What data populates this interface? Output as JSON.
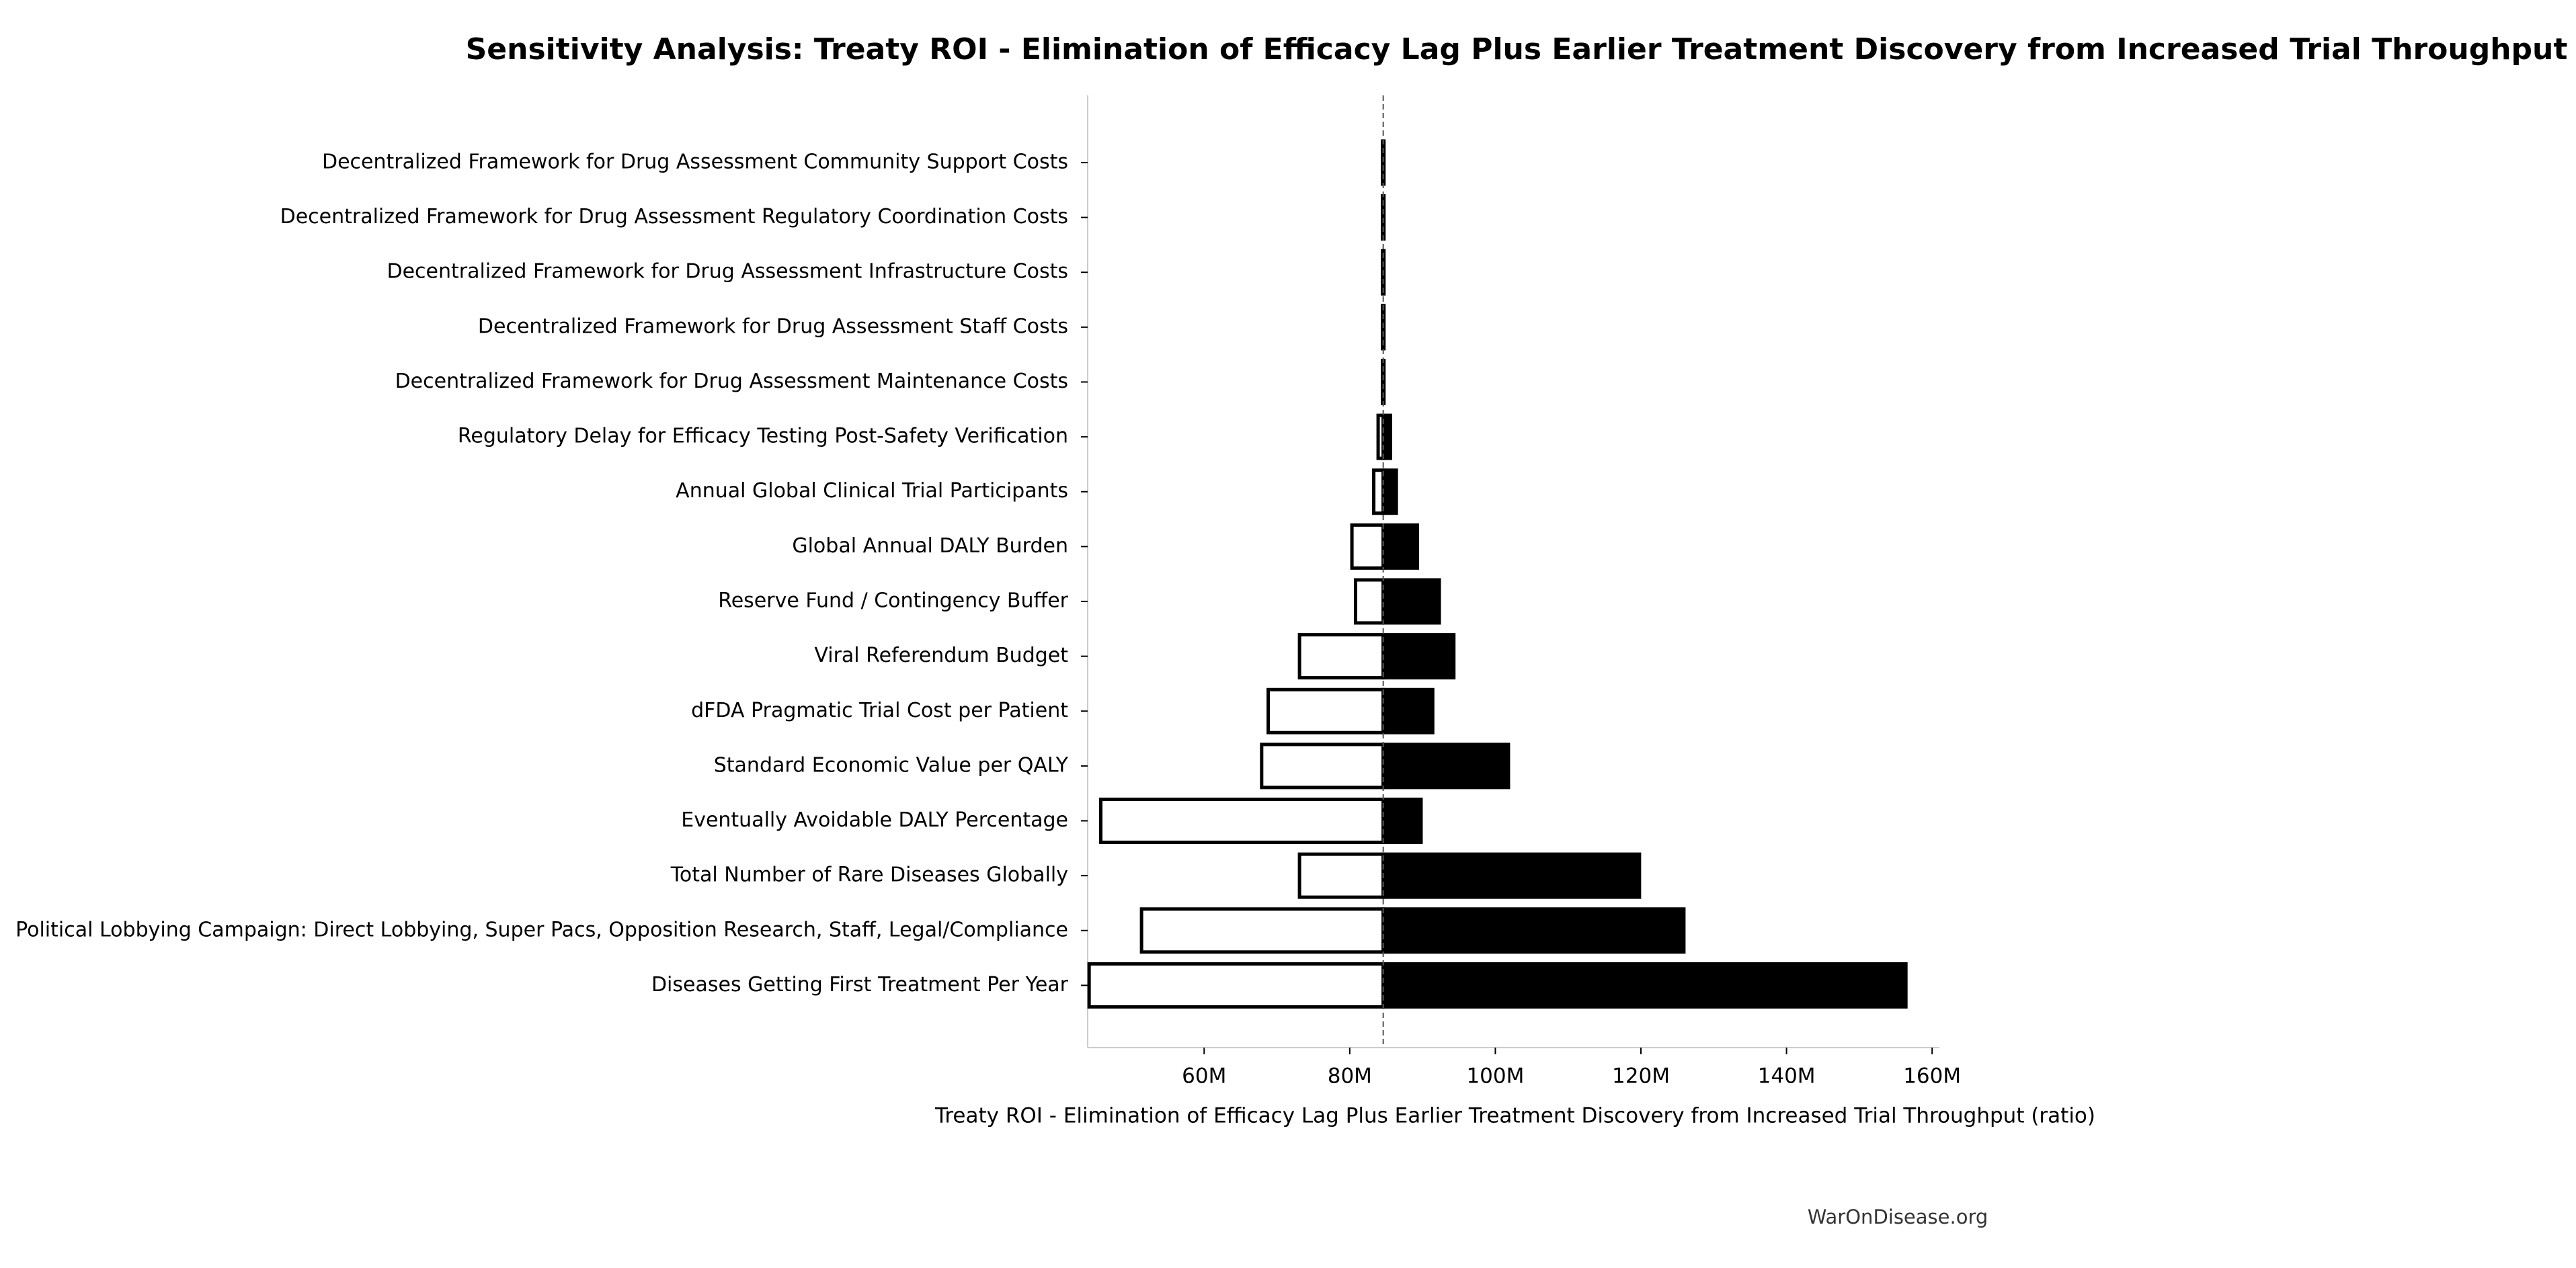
{
  "chart_data": {
    "type": "tornado",
    "title": "Sensitivity Analysis: Treaty ROI - Elimination of Efficacy Lag Plus Earlier Treatment Discovery from Increased Trial Throughput",
    "x_label": "Treaty ROI - Elimination of Efficacy Lag Plus Earlier Treatment Discovery from Increased Trial Throughput (ratio)",
    "source": "WarOnDisease.org",
    "categories": [
      "Decentralized Framework for Drug Assessment Community Support Costs",
      "Decentralized Framework for Drug Assessment Regulatory Coordination Costs",
      "Decentralized Framework for Drug Assessment Infrastructure Costs",
      "Decentralized Framework for Drug Assessment Staff Costs",
      "Decentralized Framework for Drug Assessment Maintenance Costs",
      "Regulatory Delay for Efficacy Testing Post-Safety Verification",
      "Annual Global Clinical Trial Participants",
      "Global Annual DALY Burden",
      "Reserve Fund / Contingency Buffer",
      "Viral Referendum Budget",
      "dFDA Pragmatic Trial Cost per Patient",
      "Standard Economic Value per QALY",
      "Eventually Avoidable DALY Percentage",
      "Total Number of Rare Diseases Globally",
      "Political Lobbying Campaign: Direct Lobbying, Super Pacs, Opposition Research, Staff, Legal/Compliance",
      "Diseases Getting First Treatment Per Year"
    ],
    "baseline": 84600000,
    "low_values": [
      84500000,
      84500000,
      84500000,
      84500000,
      84500000,
      83900000,
      83300000,
      80300000,
      80800000,
      73100000,
      68800000,
      67900000,
      45800000,
      73100000,
      51400000,
      44200000
    ],
    "high_values": [
      84700000,
      84700000,
      84700000,
      84700000,
      84700000,
      85600000,
      86400000,
      89300000,
      92300000,
      94300000,
      91400000,
      101800000,
      89800000,
      119800000,
      125900000,
      156400000
    ],
    "low_color": "#ffffff",
    "high_color": "#000000",
    "xlim": [
      44000000,
      161000000
    ],
    "xticks": [
      {
        "value": 60000000,
        "label": "60M"
      },
      {
        "value": 80000000,
        "label": "80M"
      },
      {
        "value": 100000000,
        "label": "100M"
      },
      {
        "value": 120000000,
        "label": "120M"
      },
      {
        "value": 140000000,
        "label": "140M"
      },
      {
        "value": 160000000,
        "label": "160M"
      }
    ]
  }
}
